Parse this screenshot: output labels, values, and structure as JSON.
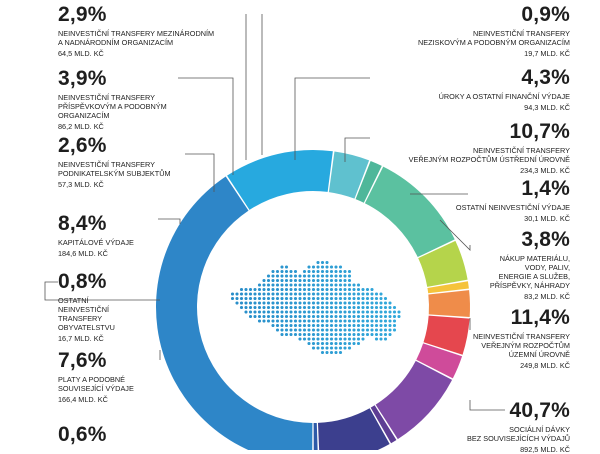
{
  "chart_data": {
    "type": "pie",
    "donut": true,
    "slices": [
      {
        "id": "s-sd",
        "percent": "40,7%",
        "value": 40.7,
        "label": "SOCIÁLNÍ DÁVKY\nBEZ SOUVISEJÍCÍCH VÝDAJŮ",
        "amount": "892,5 MLD. KČ",
        "color": "#2e86c8"
      },
      {
        "id": "s-uzemni",
        "percent": "11,4%",
        "value": 11.4,
        "label": "NEINVESTIČNÍ TRANSFERY\nVEŘEJNÝM ROZPOČTŮM\nÚZEMNÍ ÚROVNĚ",
        "amount": "249,8 MLD. KČ",
        "color": "#27a9df"
      },
      {
        "id": "s-nakup",
        "percent": "3,8%",
        "value": 3.8,
        "label": "NÁKUP MATERIÁLU,\nVODY, PALIV,\nENERGIE A SLUŽEB,\nPŘÍSPĚVKY, NÁHRADY",
        "amount": "83,2 MLD. KČ",
        "color": "#5fc1cf"
      },
      {
        "id": "s-ostatni-neinv",
        "percent": "1,4%",
        "value": 1.4,
        "label": "OSTATNÍ NEINVESTIČNÍ VÝDAJE",
        "amount": "30,1 MLD. KČ",
        "color": "#4eb79a"
      },
      {
        "id": "s-ustredni",
        "percent": "10,7%",
        "value": 10.7,
        "label": "NEINVESTIČNÍ TRANSFERY\nVEŘEJNÝM ROZPOČTŮM ÚSTŘEDNÍ ÚROVNĚ",
        "amount": "234,3 MLD. KČ",
        "color": "#5bc1a0"
      },
      {
        "id": "s-uroky",
        "percent": "4,3%",
        "value": 4.3,
        "label": "ÚROKY A OSTATNÍ FINANČNÍ VÝDAJE",
        "amount": "94,3 MLD. KČ",
        "color": "#b5d44b"
      },
      {
        "id": "s-nezisk",
        "percent": "0,9%",
        "value": 0.9,
        "label": "NEINVESTIČNÍ TRANSFERY\nNEZISKOVÝM A PODOBNÝM ORGANIZACÍM",
        "amount": "19,7 MLD. KČ",
        "color": "#f5c33b"
      },
      {
        "id": "s-mezinar",
        "percent": "2,9%",
        "value": 2.9,
        "label": "NEINVESTIČNÍ TRANSFERY MEZINÁRODNÍM\nA NADNÁRODNÍM ORGANIZACÍM",
        "amount": "64,5 MLD. KČ",
        "color": "#ef8c4a"
      },
      {
        "id": "s-prisp",
        "percent": "3,9%",
        "value": 3.9,
        "label": "NEINVESTIČNÍ TRANSFERY\nPŘÍSPĚVKOVÝM A PODOBNÝM\nORGANIZACÍM",
        "amount": "86,2 MLD. KČ",
        "color": "#e5474e"
      },
      {
        "id": "s-podnik",
        "percent": "2,6%",
        "value": 2.6,
        "label": "NEINVESTIČNÍ TRANSFERY\nPODNIKATELSKÝM SUBJEKTŮM",
        "amount": "57,3 MLD. KČ",
        "color": "#cf4b9a"
      },
      {
        "id": "s-kapital",
        "percent": "8,4%",
        "value": 8.4,
        "label": "KAPITÁLOVÉ VÝDAJE",
        "amount": "184,6 MLD. KČ",
        "color": "#7e4aa6"
      },
      {
        "id": "s-obyv",
        "percent": "0,8%",
        "value": 0.8,
        "label": "OSTATNÍ\nNEINVESTIČNÍ\nTRANSFERY\nOBYVATELSTVU",
        "amount": "16,7 MLD. KČ",
        "color": "#5d3d94"
      },
      {
        "id": "s-platy",
        "percent": "7,6%",
        "value": 7.6,
        "label": "PLATY A PODOBNÉ\nSOUVISEJÍCÍ VÝDAJE",
        "amount": "166,4 MLD. KČ",
        "color": "#3c3f8e"
      },
      {
        "id": "s-last",
        "percent": "0,6%",
        "value": 0.6,
        "label": "",
        "amount": "",
        "color": "#2d5aa8"
      }
    ]
  }
}
